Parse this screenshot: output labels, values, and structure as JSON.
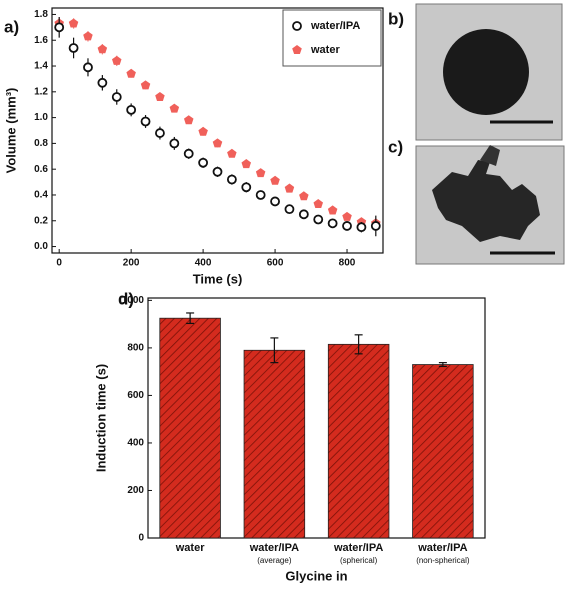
{
  "chart_data": [
    {
      "type": "scatter",
      "panel_label": "a)",
      "xlabel": "Time (s)",
      "ylabel": "Volume (mm³)",
      "x": [
        0,
        40,
        80,
        120,
        160,
        200,
        240,
        280,
        320,
        360,
        400,
        440,
        480,
        520,
        560,
        600,
        640,
        680,
        720,
        760,
        800,
        840,
        880
      ],
      "series": [
        {
          "name": "water/IPA",
          "color": "#111111",
          "marker": "circle",
          "values": [
            1.7,
            1.54,
            1.39,
            1.27,
            1.16,
            1.06,
            0.97,
            0.88,
            0.8,
            0.72,
            0.65,
            0.58,
            0.52,
            0.46,
            0.4,
            0.35,
            0.29,
            0.25,
            0.21,
            0.18,
            0.16,
            0.15,
            0.16
          ],
          "errors": [
            0.08,
            0.08,
            0.07,
            0.06,
            0.06,
            0.05,
            0.05,
            0.05,
            0.05,
            0.04,
            0.04,
            0.04,
            0.04,
            0.04,
            0.03,
            0.03,
            0.03,
            0.03,
            0.03,
            0.03,
            0.03,
            0.04,
            0.08
          ]
        },
        {
          "name": "water",
          "color": "#f0605a",
          "marker": "pentagon",
          "values": [
            1.73,
            1.73,
            1.63,
            1.53,
            1.44,
            1.34,
            1.25,
            1.16,
            1.07,
            0.98,
            0.89,
            0.8,
            0.72,
            0.64,
            0.57,
            0.51,
            0.45,
            0.39,
            0.33,
            0.28,
            0.23,
            0.19,
            0.18
          ],
          "errors": [
            0.05,
            0.04,
            0.04,
            0.04,
            0.04,
            0.03,
            0.03,
            0.03,
            0.03,
            0.03,
            0.03,
            0.03,
            0.02,
            0.02,
            0.02,
            0.02,
            0.02,
            0.02,
            0.02,
            0.02,
            0.02,
            0.02,
            0.03
          ]
        }
      ],
      "xlim": [
        -20,
        900
      ],
      "xticks": [
        0,
        200,
        400,
        600,
        800
      ],
      "ylim": [
        -0.05,
        1.85
      ],
      "yticks": [
        {
          "value": 0,
          "label": "0.0"
        },
        0.2,
        0.4,
        0.6,
        0.8,
        {
          "value": 1,
          "label": "1.0"
        },
        1.2,
        1.4,
        1.6,
        1.8
      ],
      "legend": "upper right"
    },
    {
      "type": "bar",
      "panel_label": "d)",
      "xlabel": "Glycine in",
      "ylabel": "Induction time (s)",
      "categories": [
        "water",
        "water/IPA",
        "water/IPA",
        "water/IPA"
      ],
      "category_notes": [
        "(average)",
        "(spherical)",
        "(non-spherical)"
      ],
      "values": [
        925,
        790,
        815,
        730
      ],
      "errors": [
        22,
        52,
        40,
        8
      ],
      "color": "#d42b1e",
      "hatch": true,
      "ylim": [
        0,
        1010
      ],
      "yticks": [
        0,
        200,
        400,
        600,
        800,
        1000
      ]
    }
  ],
  "images": [
    {
      "label": "b)"
    },
    {
      "label": "c)"
    }
  ]
}
